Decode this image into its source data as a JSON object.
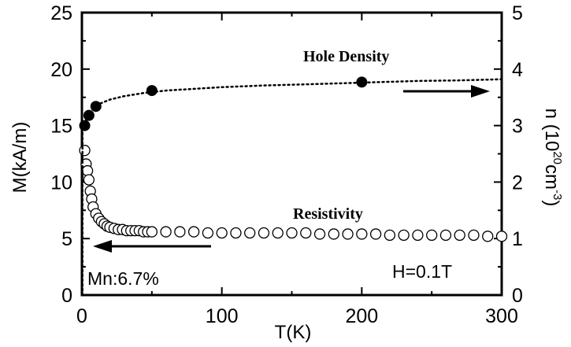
{
  "chart_data": {
    "type": "scatter",
    "xlabel": "T(K)",
    "ylabel_left": "M(kA/m)",
    "ylabel_right_parts": [
      "n (10",
      "20",
      "cm",
      "-3",
      ")"
    ],
    "xlim": [
      0,
      300
    ],
    "ylim_left": [
      0,
      25
    ],
    "ylim_right": [
      0,
      5
    ],
    "x_ticks": [
      "0",
      "100",
      "200",
      "300"
    ],
    "y_left_ticks": [
      "0",
      "5",
      "10",
      "15",
      "20",
      "25"
    ],
    "y_right_ticks": [
      "0",
      "1",
      "2",
      "3",
      "4",
      "5"
    ],
    "grid": false,
    "annotations": {
      "hole_density": "Hole Density",
      "resistivity": "Resistivity",
      "field": "H=0.1T",
      "sample": "Mn:6.7%"
    },
    "series": [
      {
        "axis": "right",
        "marker": "filled-circle",
        "x": [
          2,
          5,
          10,
          50,
          200
        ],
        "y": [
          3.0,
          3.18,
          3.34,
          3.62,
          3.77
        ]
      },
      {
        "axis": "right",
        "line_style": "dotted",
        "x": [
          2,
          3,
          5,
          8,
          12,
          20,
          30,
          45,
          60,
          80,
          100,
          130,
          160,
          200,
          240,
          270,
          300
        ],
        "y": [
          3.0,
          3.1,
          3.2,
          3.3,
          3.38,
          3.46,
          3.52,
          3.58,
          3.62,
          3.65,
          3.68,
          3.71,
          3.73,
          3.76,
          3.79,
          3.8,
          3.82
        ]
      },
      {
        "axis": "left",
        "marker": "open-circle",
        "x": [
          2,
          3,
          4,
          5,
          6,
          7,
          8,
          10,
          12,
          14,
          16,
          18,
          20,
          23,
          26,
          29,
          32,
          35,
          38,
          41,
          44,
          47,
          50,
          60,
          70,
          80,
          90,
          100,
          110,
          120,
          130,
          140,
          150,
          160,
          170,
          180,
          190,
          200,
          210,
          220,
          230,
          240,
          250,
          260,
          270,
          280,
          290,
          300
        ],
        "y": [
          12.8,
          11.6,
          11.0,
          10.2,
          9.2,
          8.5,
          7.8,
          7.2,
          6.8,
          6.5,
          6.3,
          6.1,
          6.0,
          5.9,
          5.8,
          5.8,
          5.7,
          5.7,
          5.7,
          5.7,
          5.6,
          5.6,
          5.6,
          5.6,
          5.6,
          5.6,
          5.5,
          5.5,
          5.5,
          5.5,
          5.5,
          5.5,
          5.5,
          5.5,
          5.4,
          5.4,
          5.4,
          5.4,
          5.4,
          5.3,
          5.3,
          5.3,
          5.3,
          5.3,
          5.3,
          5.3,
          5.2,
          5.2
        ]
      },
      {
        "axis": "left",
        "line_style": "dotted",
        "x": [
          0.4,
          0.4
        ],
        "y": [
          0,
          15
        ]
      }
    ]
  }
}
